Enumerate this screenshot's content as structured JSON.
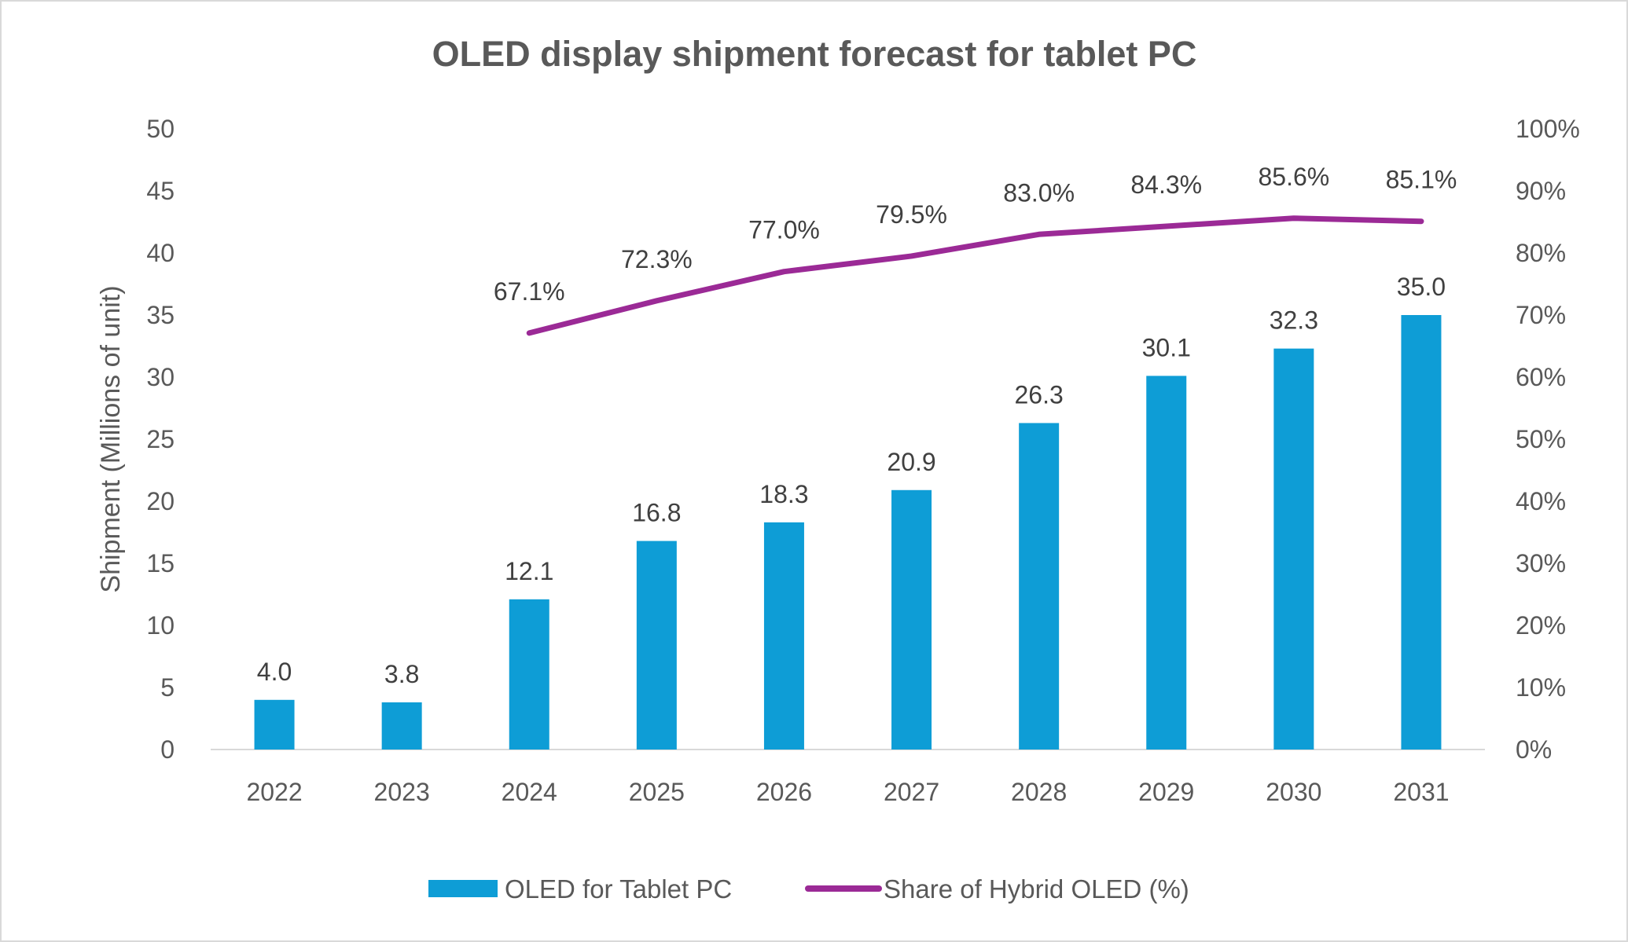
{
  "chart_data": {
    "type": "bar+line",
    "title": "OLED display shipment forecast for tablet PC",
    "ylabel": "Shipment (Millions of unit)",
    "y2label": "",
    "xlabel": "",
    "ylim": [
      0,
      50
    ],
    "y2lim": [
      0,
      100
    ],
    "yticks": [
      "0",
      "5",
      "10",
      "15",
      "20",
      "25",
      "30",
      "35",
      "40",
      "45",
      "50"
    ],
    "y2ticks": [
      "0%",
      "10%",
      "20%",
      "30%",
      "40%",
      "50%",
      "60%",
      "70%",
      "80%",
      "90%",
      "100%"
    ],
    "categories": [
      "2022",
      "2023",
      "2024",
      "2025",
      "2026",
      "2027",
      "2028",
      "2029",
      "2030",
      "2031"
    ],
    "grid": false,
    "legend_position": "bottom",
    "series": [
      {
        "name": "OLED for Tablet PC",
        "type": "bar",
        "axis": "left",
        "color": "#0E9DD6",
        "values": [
          4.0,
          3.8,
          12.1,
          16.8,
          18.3,
          20.9,
          26.3,
          30.1,
          32.3,
          35.0
        ],
        "labels": [
          "4.0",
          "3.8",
          "12.1",
          "16.8",
          "18.3",
          "20.9",
          "26.3",
          "30.1",
          "32.3",
          "35.0"
        ]
      },
      {
        "name": "Share of Hybrid OLED (%)",
        "type": "line",
        "axis": "right",
        "color": "#9B2A96",
        "values": [
          null,
          null,
          67.1,
          72.3,
          77.0,
          79.5,
          83.0,
          84.3,
          85.6,
          85.1
        ],
        "labels": [
          "",
          "",
          "67.1%",
          "72.3%",
          "77.0%",
          "79.5%",
          "83.0%",
          "84.3%",
          "85.6%",
          "85.1%"
        ]
      }
    ]
  }
}
